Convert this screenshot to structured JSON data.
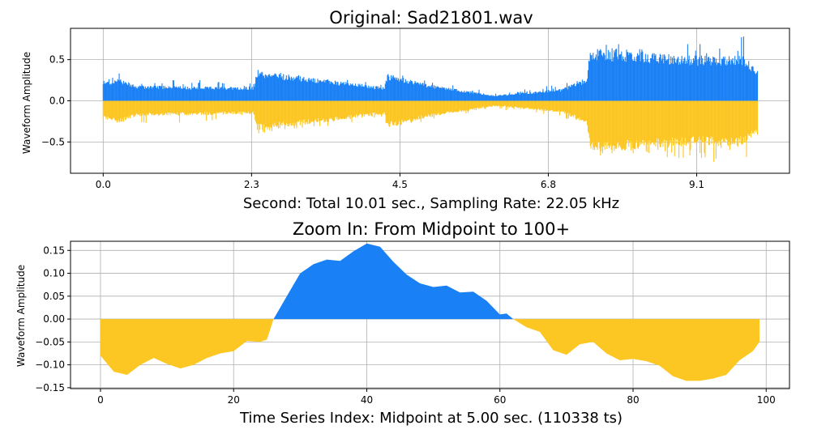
{
  "colors": {
    "positive": "#1a80f5",
    "negative": "#fcc623",
    "grid": "#b0b0b0"
  },
  "chart_data": [
    {
      "id": "top",
      "type": "area",
      "title": "Original: Sad21801.wav",
      "xlabel": "Second: Total 10.01 sec., Sampling Rate: 22.05 kHz",
      "ylabel": "Waveform Amplitude",
      "xlim": [
        -0.5,
        10.5
      ],
      "ylim": [
        -0.88,
        0.88
      ],
      "xticks": [
        {
          "v": 0.0,
          "label": "0.0"
        },
        {
          "v": 2.27,
          "label": "2.3"
        },
        {
          "v": 4.54,
          "label": "4.5"
        },
        {
          "v": 6.81,
          "label": "6.8"
        },
        {
          "v": 9.08,
          "label": "9.1"
        }
      ],
      "yticks": [
        {
          "v": 0.5,
          "label": "0.5"
        },
        {
          "v": 0.0,
          "label": "0.0"
        },
        {
          "v": -0.5,
          "label": "−0.5"
        }
      ],
      "grid": true,
      "duration_sec": 10.01,
      "envelope_keypoints": [
        {
          "t": 0.0,
          "env": 0.2,
          "peak": 0.25
        },
        {
          "t": 0.25,
          "env": 0.25,
          "peak": 0.42
        },
        {
          "t": 0.5,
          "env": 0.17,
          "peak": 0.3
        },
        {
          "t": 1.5,
          "env": 0.16,
          "peak": 0.25
        },
        {
          "t": 2.3,
          "env": 0.15,
          "peak": 0.22
        },
        {
          "t": 2.35,
          "env": 0.33,
          "peak": 0.4
        },
        {
          "t": 3.5,
          "env": 0.23,
          "peak": 0.3
        },
        {
          "t": 4.3,
          "env": 0.15,
          "peak": 0.2
        },
        {
          "t": 4.35,
          "env": 0.3,
          "peak": 0.35
        },
        {
          "t": 5.0,
          "env": 0.18,
          "peak": 0.25
        },
        {
          "t": 6.0,
          "env": 0.06,
          "peak": 0.1
        },
        {
          "t": 7.0,
          "env": 0.13,
          "peak": 0.2
        },
        {
          "t": 7.4,
          "env": 0.25,
          "peak": 0.3
        },
        {
          "t": 7.45,
          "env": 0.58,
          "peak": 0.7
        },
        {
          "t": 9.0,
          "env": 0.5,
          "peak": 0.7
        },
        {
          "t": 9.8,
          "env": 0.5,
          "peak": 0.8
        },
        {
          "t": 10.0,
          "env": 0.35,
          "peak": 0.8
        }
      ]
    },
    {
      "id": "bottom",
      "type": "area",
      "title": "Zoom In: From Midpoint to 100+",
      "xlabel": "Time Series Index: Midpoint at 5.00 sec. (110338 ts)",
      "ylabel": "Waveform Amplitude",
      "xlim": [
        -4.5,
        103.5
      ],
      "ylim": [
        -0.152,
        0.17
      ],
      "xticks": [
        {
          "v": 0,
          "label": "0"
        },
        {
          "v": 20,
          "label": "20"
        },
        {
          "v": 40,
          "label": "40"
        },
        {
          "v": 60,
          "label": "60"
        },
        {
          "v": 80,
          "label": "80"
        },
        {
          "v": 100,
          "label": "100"
        }
      ],
      "yticks": [
        {
          "v": 0.15,
          "label": "0.15"
        },
        {
          "v": 0.1,
          "label": "0.10"
        },
        {
          "v": 0.05,
          "label": "0.05"
        },
        {
          "v": 0.0,
          "label": "0.00"
        },
        {
          "v": -0.05,
          "label": "−0.05"
        },
        {
          "v": -0.1,
          "label": "−0.10"
        },
        {
          "v": -0.15,
          "label": "−0.15"
        }
      ],
      "grid": true,
      "x": [
        0,
        2,
        4,
        6,
        8,
        10,
        12,
        14,
        16,
        18,
        20,
        22,
        24,
        25,
        26,
        28,
        30,
        32,
        34,
        36,
        38,
        40,
        42,
        44,
        46,
        48,
        50,
        52,
        54,
        56,
        58,
        60,
        61,
        62,
        64,
        66,
        68,
        70,
        72,
        74,
        76,
        78,
        80,
        82,
        84,
        86,
        88,
        90,
        92,
        94,
        96,
        98,
        99
      ],
      "y": [
        -0.08,
        -0.115,
        -0.122,
        -0.1,
        -0.085,
        -0.098,
        -0.108,
        -0.1,
        -0.085,
        -0.075,
        -0.07,
        -0.048,
        -0.05,
        -0.045,
        0.0,
        0.05,
        0.1,
        0.12,
        0.13,
        0.127,
        0.148,
        0.165,
        0.158,
        0.125,
        0.097,
        0.078,
        0.07,
        0.073,
        0.058,
        0.06,
        0.04,
        0.01,
        0.012,
        0.0,
        -0.018,
        -0.028,
        -0.068,
        -0.078,
        -0.055,
        -0.05,
        -0.075,
        -0.09,
        -0.087,
        -0.092,
        -0.102,
        -0.125,
        -0.135,
        -0.135,
        -0.13,
        -0.122,
        -0.09,
        -0.07,
        -0.05
      ]
    }
  ]
}
